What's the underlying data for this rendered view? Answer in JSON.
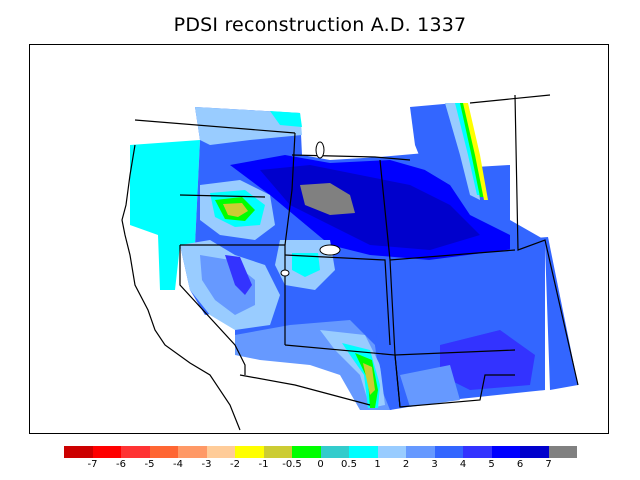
{
  "title": "PDSI reconstruction A.D. 1337",
  "legend": {
    "colors": [
      "#cc0000",
      "#ff0000",
      "#ff3333",
      "#ff6633",
      "#ff9966",
      "#ffcc99",
      "#ffff00",
      "#cccc33",
      "#00ff00",
      "#33cccc",
      "#00ffff",
      "#99ccff",
      "#6699ff",
      "#3366ff",
      "#3333ff",
      "#0000ff",
      "#0000cc",
      "#808080"
    ],
    "labels": [
      "-7",
      "-6",
      "-5",
      "-4",
      "-3",
      "-2",
      "-1",
      "-0.5",
      "0",
      "0.5",
      "1",
      "2",
      "3",
      "4",
      "5",
      "6",
      "7"
    ]
  },
  "chart_data": {
    "type": "heatmap",
    "title": "PDSI reconstruction A.D. 1337",
    "colorbar_levels": [
      -7,
      -6,
      -5,
      -4,
      -3,
      -2,
      -1,
      -0.5,
      0,
      0.5,
      1,
      2,
      3,
      4,
      5,
      6,
      7
    ],
    "dominant_range": [
      1,
      7
    ],
    "missing_value_color": "#808080"
  }
}
